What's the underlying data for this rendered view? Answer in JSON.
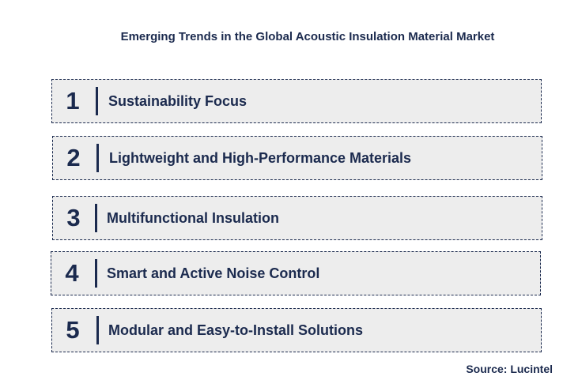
{
  "title": "Emerging Trends in the Global Acoustic Insulation Material Market",
  "trends": [
    {
      "number": "1",
      "label": "Sustainability Focus"
    },
    {
      "number": "2",
      "label": "Lightweight and High-Performance Materials"
    },
    {
      "number": "3",
      "label": "Multifunctional Insulation"
    },
    {
      "number": "4",
      "label": "Smart and Active Noise Control"
    },
    {
      "number": "5",
      "label": "Modular and Easy-to-Install Solutions"
    }
  ],
  "source": "Source: Lucintel",
  "colors": {
    "text": "#1b2a4e",
    "box_fill": "#ededed",
    "box_border": "#1b2a4e"
  }
}
